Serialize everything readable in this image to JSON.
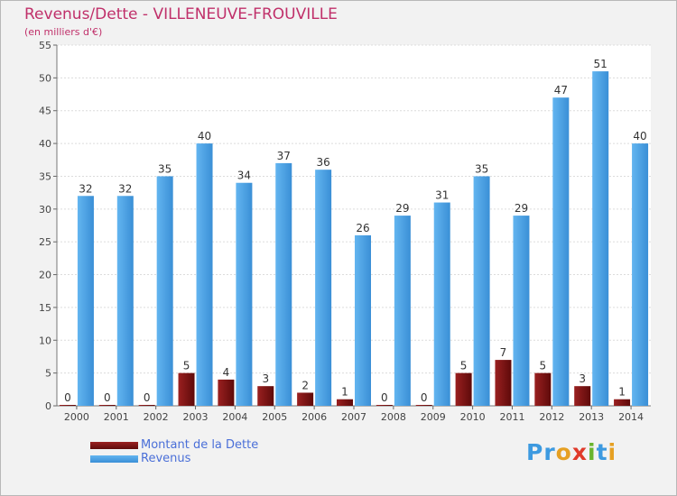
{
  "chart_data": {
    "type": "bar",
    "title": "Revenus/Dette - VILLENEUVE-FROUVILLE",
    "subtitle": "(en milliers d'€)",
    "categories": [
      "2000",
      "2001",
      "2002",
      "2003",
      "2004",
      "2005",
      "2006",
      "2007",
      "2008",
      "2009",
      "2010",
      "2011",
      "2012",
      "2013",
      "2014"
    ],
    "series": [
      {
        "name": "Montant de la Dette",
        "color": "#7a1010",
        "values": [
          0,
          0,
          0,
          5,
          4,
          3,
          2,
          1,
          0,
          0,
          5,
          7,
          5,
          3,
          1
        ]
      },
      {
        "name": "Revenus",
        "color": "#3d9ae0",
        "values": [
          32,
          32,
          35,
          40,
          34,
          37,
          36,
          26,
          29,
          31,
          35,
          29,
          47,
          51,
          40
        ]
      }
    ],
    "ylim": [
      0,
      55
    ],
    "yticks": [
      0,
      5,
      10,
      15,
      20,
      25,
      30,
      35,
      40,
      45,
      50,
      55
    ],
    "grid": true,
    "legend": "bottom-left"
  },
  "logo": {
    "text": "Proxiti",
    "colors": [
      "#3d9ae0",
      "#3d9ae0",
      "#e6a023",
      "#e03a2a",
      "#6ab42d",
      "#3d9ae0",
      "#e6a023"
    ]
  }
}
